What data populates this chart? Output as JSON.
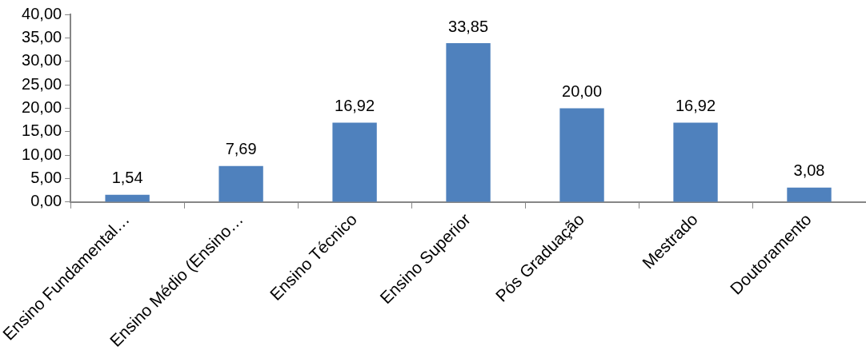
{
  "chart_data": {
    "type": "bar",
    "categories": [
      "Ensino Fundamental…",
      "Ensino Médio (Ensino…",
      "Ensino Técnico",
      "Ensino Superior",
      "Pós Graduação",
      "Mestrado",
      "Doutoramento"
    ],
    "values": [
      1.54,
      7.69,
      16.92,
      33.85,
      20.0,
      16.92,
      3.08
    ],
    "value_labels": [
      "1,54",
      "7,69",
      "16,92",
      "33,85",
      "20,00",
      "16,92",
      "3,08"
    ],
    "color": "#4f81bd",
    "ylim": [
      0,
      40
    ],
    "yticks": [
      {
        "value": 0,
        "label": "0,00"
      },
      {
        "value": 5,
        "label": "5,00"
      },
      {
        "value": 10,
        "label": "10,00"
      },
      {
        "value": 15,
        "label": "15,00"
      },
      {
        "value": 20,
        "label": "20,00"
      },
      {
        "value": 25,
        "label": "25,00"
      },
      {
        "value": 30,
        "label": "30,00"
      },
      {
        "value": 35,
        "label": "35,00"
      },
      {
        "value": 40,
        "label": "40,00"
      }
    ],
    "grid": false
  }
}
